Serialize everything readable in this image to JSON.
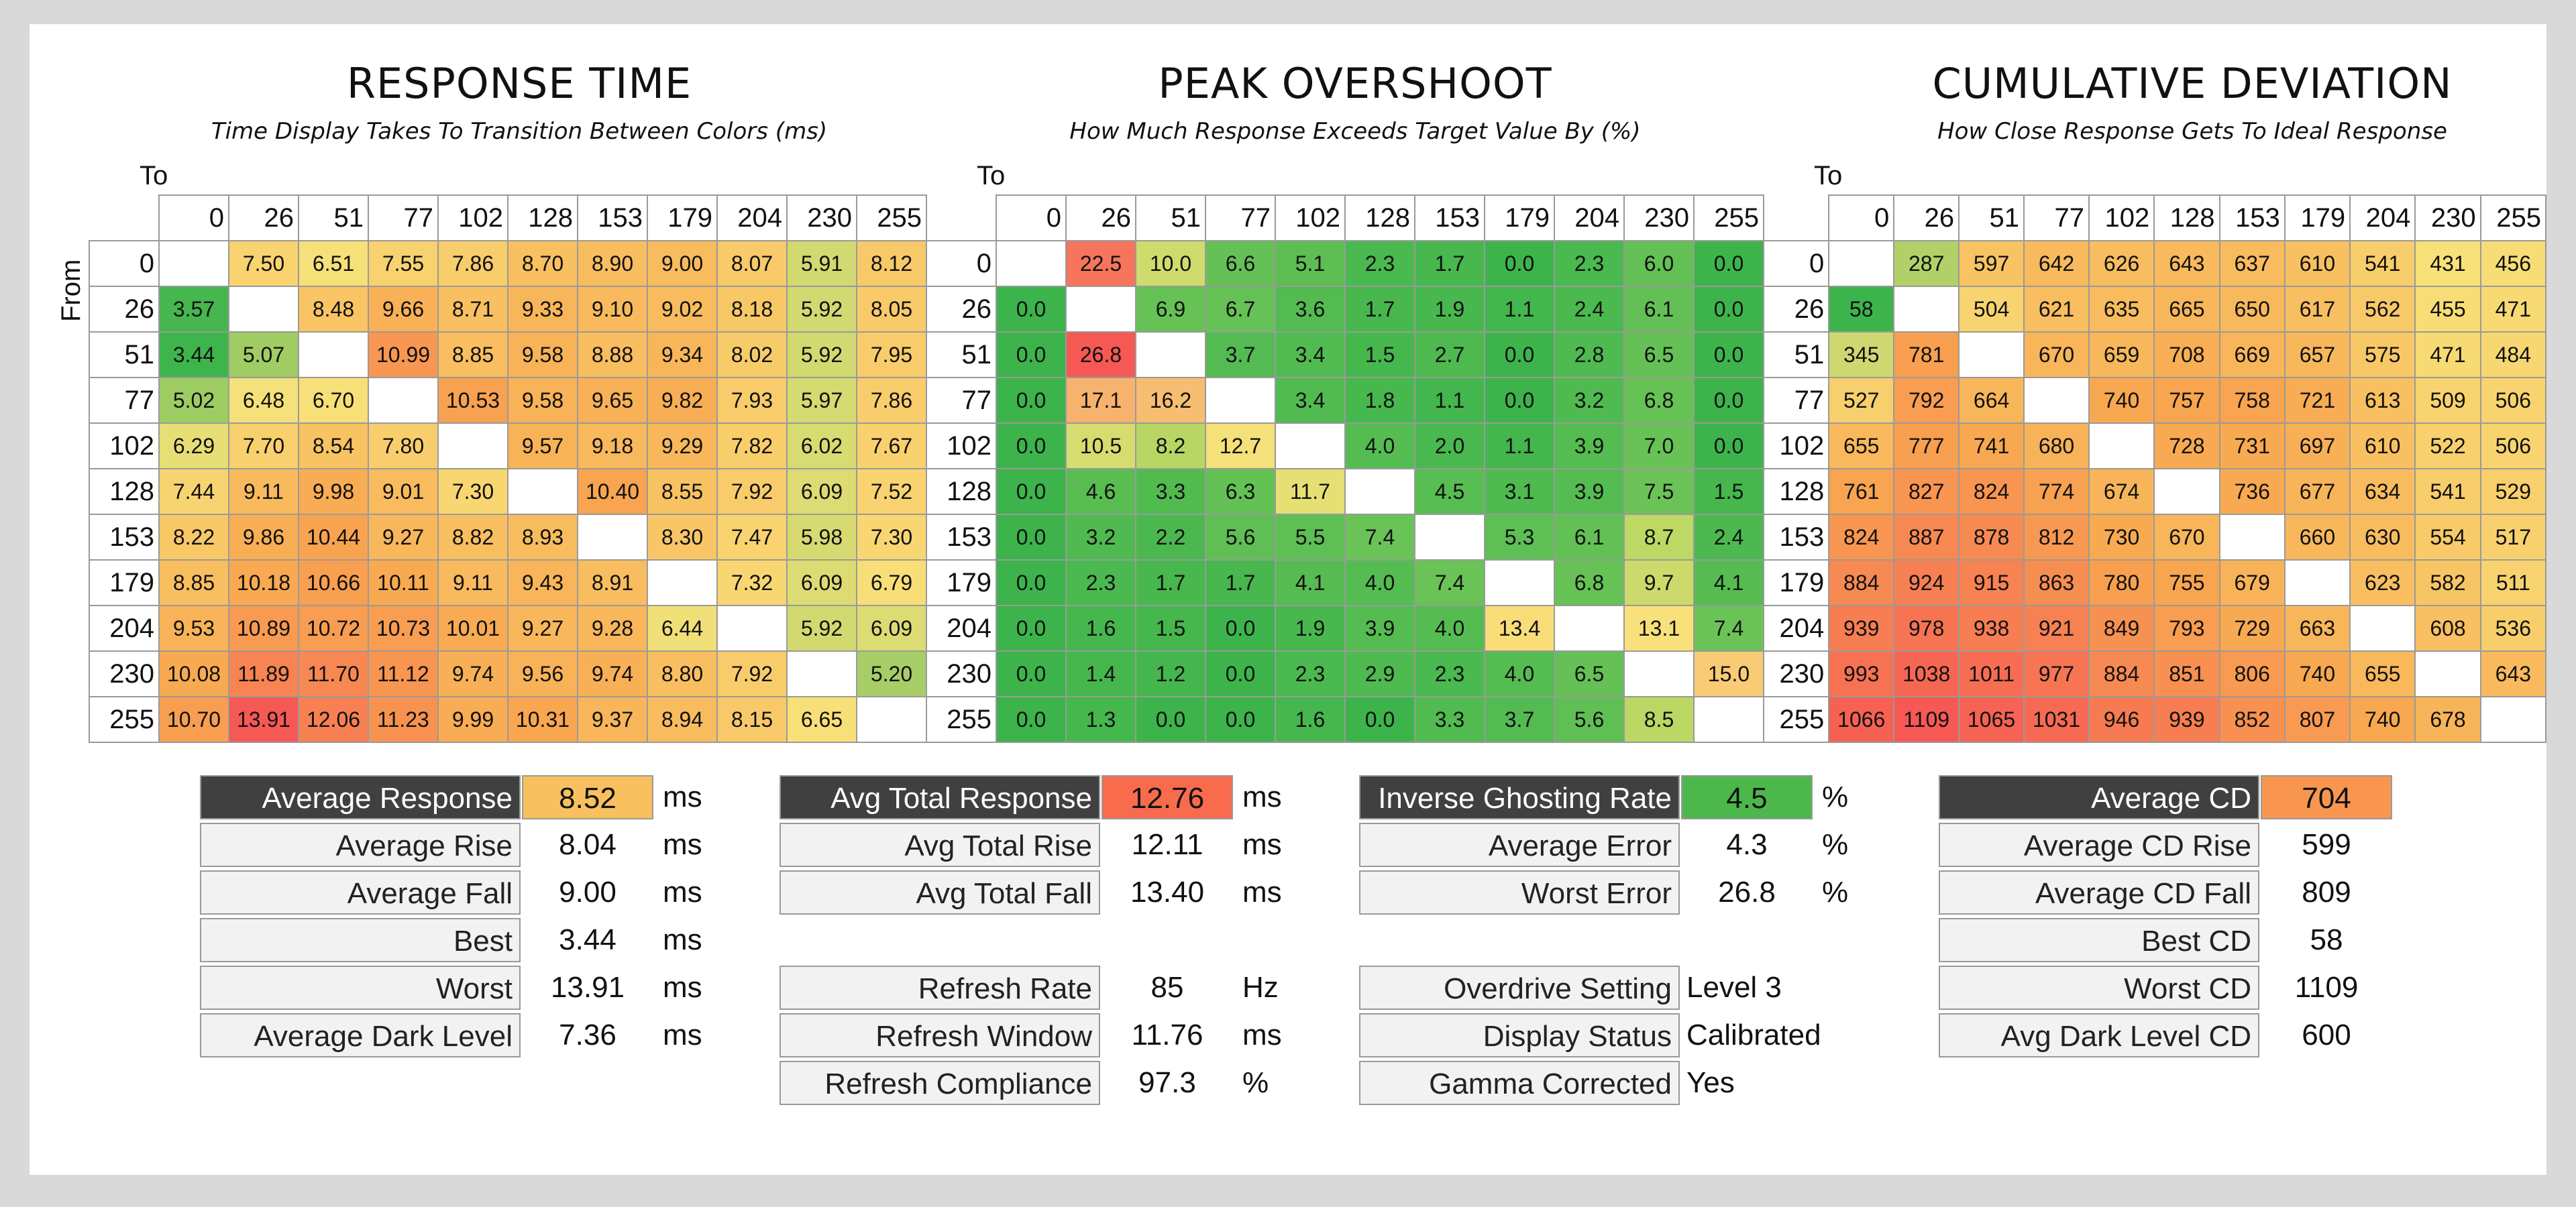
{
  "headers": [
    0,
    26,
    51,
    77,
    102,
    128,
    153,
    179,
    204,
    230,
    255
  ],
  "axis": {
    "to": "To",
    "from": "From"
  },
  "chart_data": [
    {
      "type": "heatmap",
      "title": "RESPONSE TIME",
      "subtitle": "Time Display Takes To Transition Between Colors (ms)",
      "xlabel": "To",
      "ylabel": "From",
      "categories": [
        0,
        26,
        51,
        77,
        102,
        128,
        153,
        179,
        204,
        230,
        255
      ],
      "values": [
        [
          null,
          "7.50",
          "6.51",
          "7.55",
          "7.86",
          "8.70",
          "8.90",
          "9.00",
          "8.07",
          "5.91",
          "8.12"
        ],
        [
          "3.57",
          null,
          "8.48",
          "9.66",
          "8.71",
          "9.33",
          "9.10",
          "9.02",
          "8.18",
          "5.92",
          "8.05"
        ],
        [
          "3.44",
          "5.07",
          null,
          "10.99",
          "8.85",
          "9.58",
          "8.88",
          "9.34",
          "8.02",
          "5.92",
          "7.95"
        ],
        [
          "5.02",
          "6.48",
          "6.70",
          null,
          "10.53",
          "9.58",
          "9.65",
          "9.82",
          "7.93",
          "5.97",
          "7.86"
        ],
        [
          "6.29",
          "7.70",
          "8.54",
          "7.80",
          null,
          "9.57",
          "9.18",
          "9.29",
          "7.82",
          "6.02",
          "7.67"
        ],
        [
          "7.44",
          "9.11",
          "9.98",
          "9.01",
          "7.30",
          null,
          "10.40",
          "8.55",
          "7.92",
          "6.09",
          "7.52"
        ],
        [
          "8.22",
          "9.86",
          "10.44",
          "9.27",
          "8.82",
          "8.93",
          null,
          "8.30",
          "7.47",
          "5.98",
          "7.30"
        ],
        [
          "8.85",
          "10.18",
          "10.66",
          "10.11",
          "9.11",
          "9.43",
          "8.91",
          null,
          "7.32",
          "6.09",
          "6.79"
        ],
        [
          "9.53",
          "10.89",
          "10.72",
          "10.73",
          "10.01",
          "9.27",
          "9.28",
          "6.44",
          null,
          "5.92",
          "6.09"
        ],
        [
          "10.08",
          "11.89",
          "11.70",
          "11.12",
          "9.74",
          "9.56",
          "9.74",
          "8.80",
          "7.92",
          null,
          "5.20"
        ],
        [
          "10.70",
          "13.91",
          "12.06",
          "11.23",
          "9.99",
          "10.31",
          "9.37",
          "8.94",
          "8.15",
          "6.65",
          null
        ]
      ]
    },
    {
      "type": "heatmap",
      "title": "PEAK OVERSHOOT",
      "subtitle": "How Much Response Exceeds Target Value By (%)",
      "xlabel": "To",
      "ylabel": "From",
      "categories": [
        0,
        26,
        51,
        77,
        102,
        128,
        153,
        179,
        204,
        230,
        255
      ],
      "values": [
        [
          null,
          "22.5",
          "10.0",
          "6.6",
          "5.1",
          "2.3",
          "1.7",
          "0.0",
          "2.3",
          "6.0",
          "0.0"
        ],
        [
          "0.0",
          null,
          "6.9",
          "6.7",
          "3.6",
          "1.7",
          "1.9",
          "1.1",
          "2.4",
          "6.1",
          "0.0"
        ],
        [
          "0.0",
          "26.8",
          null,
          "3.7",
          "3.4",
          "1.5",
          "2.7",
          "0.0",
          "2.8",
          "6.5",
          "0.0"
        ],
        [
          "0.0",
          "17.1",
          "16.2",
          null,
          "3.4",
          "1.8",
          "1.1",
          "0.0",
          "3.2",
          "6.8",
          "0.0"
        ],
        [
          "0.0",
          "10.5",
          "8.2",
          "12.7",
          null,
          "4.0",
          "2.0",
          "1.1",
          "3.9",
          "7.0",
          "0.0"
        ],
        [
          "0.0",
          "4.6",
          "3.3",
          "6.3",
          "11.7",
          null,
          "4.5",
          "3.1",
          "3.9",
          "7.5",
          "1.5"
        ],
        [
          "0.0",
          "3.2",
          "2.2",
          "5.6",
          "5.5",
          "7.4",
          null,
          "5.3",
          "6.1",
          "8.7",
          "2.4"
        ],
        [
          "0.0",
          "2.3",
          "1.7",
          "1.7",
          "4.1",
          "4.0",
          "7.4",
          null,
          "6.8",
          "9.7",
          "4.1"
        ],
        [
          "0.0",
          "1.6",
          "1.5",
          "0.0",
          "1.9",
          "3.9",
          "4.0",
          "13.4",
          null,
          "13.1",
          "7.4"
        ],
        [
          "0.0",
          "1.4",
          "1.2",
          "0.0",
          "2.3",
          "2.9",
          "2.3",
          "4.0",
          "6.5",
          null,
          "15.0"
        ],
        [
          "0.0",
          "1.3",
          "0.0",
          "0.0",
          "1.6",
          "0.0",
          "3.3",
          "3.7",
          "5.6",
          "8.5",
          null
        ]
      ]
    },
    {
      "type": "heatmap",
      "title": "CUMULATIVE DEVIATION",
      "subtitle": "How Close Response Gets To Ideal Response",
      "xlabel": "To",
      "ylabel": "From",
      "categories": [
        0,
        26,
        51,
        77,
        102,
        128,
        153,
        179,
        204,
        230,
        255
      ],
      "values": [
        [
          null,
          "287",
          "597",
          "642",
          "626",
          "643",
          "637",
          "610",
          "541",
          "431",
          "456"
        ],
        [
          "58",
          null,
          "504",
          "621",
          "635",
          "665",
          "650",
          "617",
          "562",
          "455",
          "471"
        ],
        [
          "345",
          "781",
          null,
          "670",
          "659",
          "708",
          "669",
          "657",
          "575",
          "471",
          "484"
        ],
        [
          "527",
          "792",
          "664",
          null,
          "740",
          "757",
          "758",
          "721",
          "613",
          "509",
          "506"
        ],
        [
          "655",
          "777",
          "741",
          "680",
          null,
          "728",
          "731",
          "697",
          "610",
          "522",
          "506"
        ],
        [
          "761",
          "827",
          "824",
          "774",
          "674",
          null,
          "736",
          "677",
          "634",
          "541",
          "529"
        ],
        [
          "824",
          "887",
          "878",
          "812",
          "730",
          "670",
          null,
          "660",
          "630",
          "554",
          "517"
        ],
        [
          "884",
          "924",
          "915",
          "863",
          "780",
          "755",
          "679",
          null,
          "623",
          "582",
          "511"
        ],
        [
          "939",
          "978",
          "938",
          "921",
          "849",
          "793",
          "729",
          "663",
          null,
          "608",
          "536"
        ],
        [
          "993",
          "1038",
          "1011",
          "977",
          "884",
          "851",
          "806",
          "740",
          "655",
          null,
          "643"
        ],
        [
          "1066",
          "1109",
          "1065",
          "1031",
          "946",
          "939",
          "852",
          "807",
          "740",
          "678",
          null
        ]
      ]
    }
  ],
  "stats": [
    [
      {
        "label": "Average Response",
        "value": "8.52",
        "unit": "ms",
        "head": true,
        "color": "#f8c05e"
      },
      {
        "label": "Average Rise",
        "value": "8.04",
        "unit": "ms"
      },
      {
        "label": "Average Fall",
        "value": "9.00",
        "unit": "ms"
      },
      {
        "label": "Best",
        "value": "3.44",
        "unit": "ms"
      },
      {
        "label": "Worst",
        "value": "13.91",
        "unit": "ms"
      },
      {
        "label": "Average Dark Level",
        "value": "7.36",
        "unit": "ms"
      }
    ],
    [
      {
        "label": "Avg Total Response",
        "value": "12.76",
        "unit": "ms",
        "head": true,
        "color": "#f86b4d"
      },
      {
        "label": "Avg Total Rise",
        "value": "12.11",
        "unit": "ms"
      },
      {
        "label": "Avg Total Fall",
        "value": "13.40",
        "unit": "ms"
      },
      null,
      {
        "label": "Refresh Rate",
        "value": "85",
        "unit": "Hz"
      },
      {
        "label": "Refresh Window",
        "value": "11.76",
        "unit": "ms"
      },
      {
        "label": "Refresh Compliance",
        "value": "97.3",
        "unit": "%"
      }
    ],
    [
      {
        "label": "Inverse Ghosting Rate",
        "value": "4.5",
        "unit": "%",
        "head": true,
        "color": "#4cb84c"
      },
      {
        "label": "Average Error",
        "value": "4.3",
        "unit": "%"
      },
      {
        "label": "Worst Error",
        "value": "26.8",
        "unit": "%"
      },
      null,
      {
        "label": "Overdrive Setting",
        "value": "Level 3",
        "unit": ""
      },
      {
        "label": "Display Status",
        "value": "Calibrated",
        "unit": ""
      },
      {
        "label": "Gamma Corrected",
        "value": "Yes",
        "unit": ""
      }
    ],
    [
      {
        "label": "Average CD",
        "value": "704",
        "unit": "",
        "head": true,
        "color": "#f8964f"
      },
      {
        "label": "Average CD Rise",
        "value": "599",
        "unit": ""
      },
      {
        "label": "Average CD Fall",
        "value": "809",
        "unit": ""
      },
      {
        "label": "Best CD",
        "value": "58",
        "unit": ""
      },
      {
        "label": "Worst CD",
        "value": "1109",
        "unit": ""
      },
      {
        "label": "Avg Dark Level CD",
        "value": "600",
        "unit": ""
      }
    ]
  ]
}
